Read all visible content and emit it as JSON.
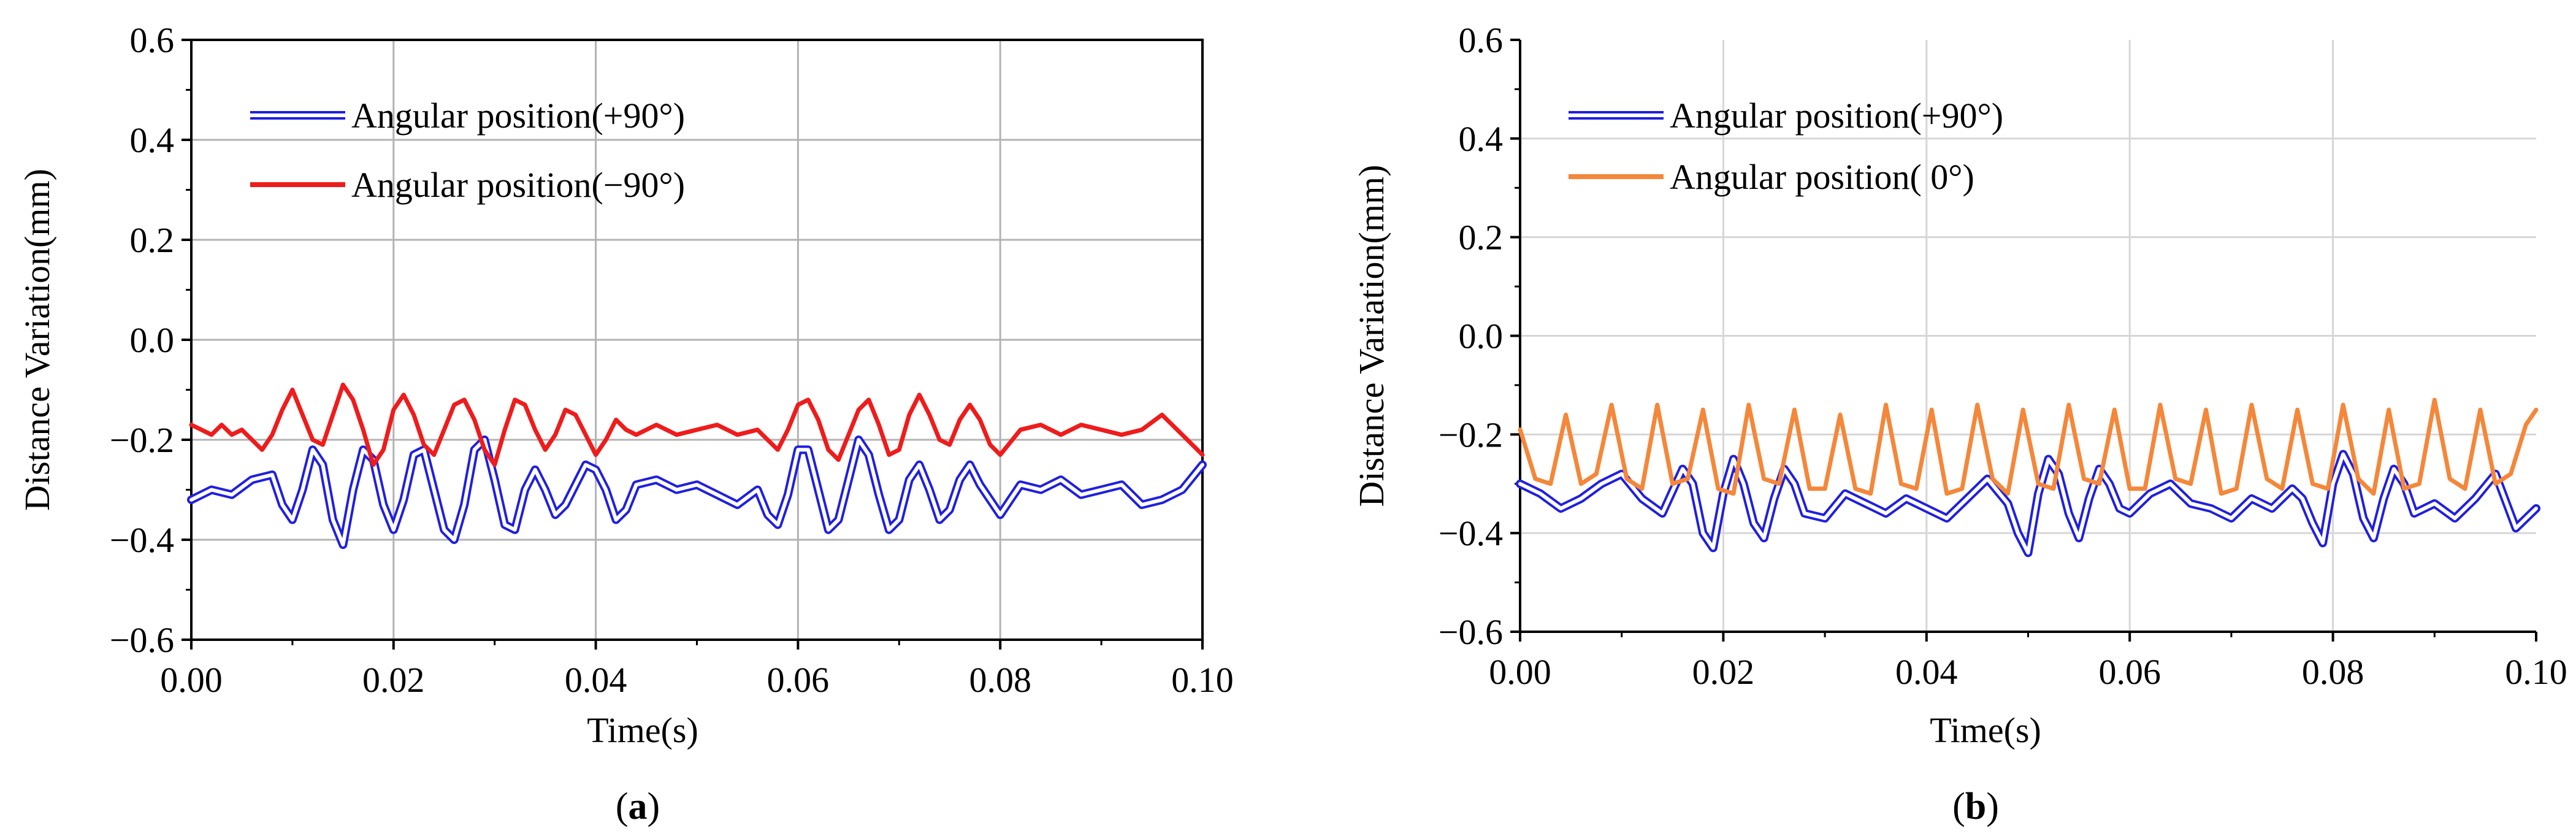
{
  "chart_data": [
    {
      "type": "line",
      "panel_label": "a",
      "xlabel": "Time(s)",
      "ylabel": "Distance Variation(mm)",
      "xlim": [
        0.0,
        0.1
      ],
      "ylim": [
        -0.6,
        0.6
      ],
      "xticks": [
        "0.00",
        "0.02",
        "0.04",
        "0.06",
        "0.08",
        "0.10"
      ],
      "yticks": [
        "0.6",
        "0.4",
        "0.2",
        "0.0",
        "-0.2",
        "-0.4",
        "-0.6"
      ],
      "grid": true,
      "legend_position": "top-left",
      "series": [
        {
          "name": "Angular position(+90°)",
          "color": "#1f1fe0",
          "style": "double-line",
          "x": [
            0.0,
            0.002,
            0.004,
            0.006,
            0.008,
            0.009,
            0.01,
            0.011,
            0.012,
            0.013,
            0.014,
            0.015,
            0.016,
            0.017,
            0.018,
            0.019,
            0.02,
            0.021,
            0.022,
            0.023,
            0.024,
            0.025,
            0.026,
            0.027,
            0.028,
            0.029,
            0.03,
            0.031,
            0.032,
            0.033,
            0.034,
            0.035,
            0.036,
            0.037,
            0.038,
            0.039,
            0.04,
            0.041,
            0.042,
            0.043,
            0.044,
            0.046,
            0.048,
            0.05,
            0.052,
            0.054,
            0.056,
            0.057,
            0.058,
            0.059,
            0.06,
            0.061,
            0.062,
            0.063,
            0.064,
            0.065,
            0.066,
            0.067,
            0.068,
            0.069,
            0.07,
            0.071,
            0.072,
            0.073,
            0.074,
            0.075,
            0.076,
            0.077,
            0.078,
            0.08,
            0.082,
            0.084,
            0.086,
            0.088,
            0.09,
            0.092,
            0.094,
            0.096,
            0.098,
            0.1
          ],
          "values": [
            -0.32,
            -0.3,
            -0.31,
            -0.28,
            -0.27,
            -0.33,
            -0.36,
            -0.3,
            -0.22,
            -0.25,
            -0.36,
            -0.41,
            -0.3,
            -0.22,
            -0.24,
            -0.33,
            -0.38,
            -0.32,
            -0.23,
            -0.22,
            -0.3,
            -0.38,
            -0.4,
            -0.33,
            -0.22,
            -0.2,
            -0.28,
            -0.37,
            -0.38,
            -0.3,
            -0.26,
            -0.3,
            -0.35,
            -0.33,
            -0.29,
            -0.25,
            -0.26,
            -0.3,
            -0.36,
            -0.34,
            -0.29,
            -0.28,
            -0.3,
            -0.29,
            -0.31,
            -0.33,
            -0.3,
            -0.35,
            -0.37,
            -0.31,
            -0.22,
            -0.22,
            -0.3,
            -0.38,
            -0.36,
            -0.28,
            -0.2,
            -0.23,
            -0.31,
            -0.38,
            -0.36,
            -0.28,
            -0.25,
            -0.3,
            -0.36,
            -0.34,
            -0.28,
            -0.25,
            -0.29,
            -0.35,
            -0.29,
            -0.3,
            -0.28,
            -0.31,
            -0.3,
            -0.29,
            -0.33,
            -0.32,
            -0.3,
            -0.25
          ]
        },
        {
          "name": "Angular position(−90°)",
          "color": "#ee1c1c",
          "style": "solid",
          "x": [
            0.0,
            0.001,
            0.002,
            0.003,
            0.004,
            0.005,
            0.006,
            0.007,
            0.008,
            0.009,
            0.01,
            0.011,
            0.012,
            0.013,
            0.014,
            0.015,
            0.016,
            0.017,
            0.018,
            0.019,
            0.02,
            0.021,
            0.022,
            0.023,
            0.024,
            0.025,
            0.026,
            0.027,
            0.028,
            0.029,
            0.03,
            0.031,
            0.032,
            0.033,
            0.034,
            0.035,
            0.036,
            0.037,
            0.038,
            0.039,
            0.04,
            0.041,
            0.042,
            0.043,
            0.044,
            0.046,
            0.048,
            0.05,
            0.052,
            0.054,
            0.056,
            0.057,
            0.058,
            0.059,
            0.06,
            0.061,
            0.062,
            0.063,
            0.064,
            0.065,
            0.066,
            0.067,
            0.068,
            0.069,
            0.07,
            0.071,
            0.072,
            0.073,
            0.074,
            0.075,
            0.076,
            0.077,
            0.078,
            0.079,
            0.08,
            0.082,
            0.084,
            0.086,
            0.088,
            0.09,
            0.092,
            0.094,
            0.096,
            0.098,
            0.1
          ],
          "values": [
            -0.17,
            -0.18,
            -0.19,
            -0.17,
            -0.19,
            -0.18,
            -0.2,
            -0.22,
            -0.19,
            -0.14,
            -0.1,
            -0.15,
            -0.2,
            -0.21,
            -0.15,
            -0.09,
            -0.12,
            -0.18,
            -0.25,
            -0.22,
            -0.14,
            -0.11,
            -0.15,
            -0.21,
            -0.23,
            -0.18,
            -0.13,
            -0.12,
            -0.16,
            -0.22,
            -0.25,
            -0.18,
            -0.12,
            -0.13,
            -0.18,
            -0.22,
            -0.19,
            -0.14,
            -0.15,
            -0.19,
            -0.23,
            -0.2,
            -0.16,
            -0.18,
            -0.19,
            -0.17,
            -0.19,
            -0.18,
            -0.17,
            -0.19,
            -0.18,
            -0.2,
            -0.22,
            -0.18,
            -0.13,
            -0.12,
            -0.16,
            -0.22,
            -0.24,
            -0.19,
            -0.14,
            -0.12,
            -0.17,
            -0.23,
            -0.22,
            -0.15,
            -0.11,
            -0.15,
            -0.2,
            -0.21,
            -0.16,
            -0.13,
            -0.16,
            -0.21,
            -0.23,
            -0.18,
            -0.17,
            -0.19,
            -0.17,
            -0.18,
            -0.19,
            -0.18,
            -0.15,
            -0.19,
            -0.23
          ]
        }
      ]
    },
    {
      "type": "line",
      "panel_label": "b",
      "xlabel": "Time(s)",
      "ylabel": "Distance Variation(mm)",
      "xlim": [
        0.0,
        0.1
      ],
      "ylim": [
        -0.6,
        0.6
      ],
      "xticks": [
        "0.00",
        "0.02",
        "0.04",
        "0.06",
        "0.08",
        "0.10"
      ],
      "yticks": [
        "0.6",
        "0.4",
        "0.2",
        "0.0",
        "-0.2",
        "-0.4",
        "-0.6"
      ],
      "grid": true,
      "legend_position": "top-left",
      "series": [
        {
          "name": "Angular position(+90°)",
          "color": "#1f1fe0",
          "style": "double-line",
          "x": [
            0.0,
            0.002,
            0.004,
            0.006,
            0.008,
            0.01,
            0.012,
            0.014,
            0.016,
            0.017,
            0.018,
            0.019,
            0.02,
            0.021,
            0.022,
            0.023,
            0.024,
            0.025,
            0.026,
            0.027,
            0.028,
            0.03,
            0.032,
            0.034,
            0.036,
            0.038,
            0.04,
            0.042,
            0.044,
            0.046,
            0.048,
            0.049,
            0.05,
            0.051,
            0.052,
            0.053,
            0.054,
            0.055,
            0.056,
            0.057,
            0.058,
            0.059,
            0.06,
            0.062,
            0.064,
            0.066,
            0.068,
            0.07,
            0.072,
            0.074,
            0.076,
            0.077,
            0.078,
            0.079,
            0.08,
            0.081,
            0.082,
            0.083,
            0.084,
            0.085,
            0.086,
            0.087,
            0.088,
            0.09,
            0.092,
            0.094,
            0.096,
            0.098,
            0.1
          ],
          "values": [
            -0.3,
            -0.32,
            -0.35,
            -0.33,
            -0.3,
            -0.28,
            -0.33,
            -0.36,
            -0.27,
            -0.3,
            -0.4,
            -0.43,
            -0.32,
            -0.25,
            -0.3,
            -0.38,
            -0.41,
            -0.33,
            -0.27,
            -0.3,
            -0.36,
            -0.37,
            -0.32,
            -0.34,
            -0.36,
            -0.33,
            -0.35,
            -0.37,
            -0.33,
            -0.29,
            -0.34,
            -0.4,
            -0.44,
            -0.32,
            -0.25,
            -0.28,
            -0.36,
            -0.41,
            -0.33,
            -0.27,
            -0.3,
            -0.35,
            -0.36,
            -0.32,
            -0.3,
            -0.34,
            -0.35,
            -0.37,
            -0.33,
            -0.35,
            -0.31,
            -0.33,
            -0.38,
            -0.42,
            -0.3,
            -0.24,
            -0.28,
            -0.37,
            -0.41,
            -0.33,
            -0.27,
            -0.3,
            -0.36,
            -0.34,
            -0.37,
            -0.33,
            -0.28,
            -0.39,
            -0.35
          ]
        },
        {
          "name": "Angular position( 0°)",
          "color": "#f4873a",
          "style": "solid",
          "x": [
            0.0,
            0.0015,
            0.003,
            0.0045,
            0.006,
            0.0075,
            0.009,
            0.0105,
            0.012,
            0.0135,
            0.015,
            0.0165,
            0.018,
            0.0195,
            0.021,
            0.0225,
            0.024,
            0.0255,
            0.027,
            0.0285,
            0.03,
            0.0315,
            0.033,
            0.0345,
            0.036,
            0.0375,
            0.039,
            0.0405,
            0.042,
            0.0435,
            0.045,
            0.0465,
            0.048,
            0.0495,
            0.051,
            0.0525,
            0.054,
            0.0555,
            0.057,
            0.0585,
            0.06,
            0.0615,
            0.063,
            0.0645,
            0.066,
            0.0675,
            0.069,
            0.0705,
            0.072,
            0.0735,
            0.075,
            0.0765,
            0.078,
            0.0795,
            0.081,
            0.0825,
            0.084,
            0.0855,
            0.087,
            0.0885,
            0.09,
            0.0915,
            0.093,
            0.0945,
            0.096,
            0.0975,
            0.099,
            0.1
          ],
          "values": [
            -0.19,
            -0.29,
            -0.3,
            -0.16,
            -0.3,
            -0.28,
            -0.14,
            -0.29,
            -0.31,
            -0.14,
            -0.3,
            -0.29,
            -0.15,
            -0.31,
            -0.32,
            -0.14,
            -0.29,
            -0.3,
            -0.15,
            -0.31,
            -0.31,
            -0.16,
            -0.31,
            -0.32,
            -0.14,
            -0.3,
            -0.31,
            -0.15,
            -0.32,
            -0.31,
            -0.14,
            -0.29,
            -0.32,
            -0.15,
            -0.3,
            -0.31,
            -0.14,
            -0.29,
            -0.3,
            -0.15,
            -0.31,
            -0.31,
            -0.14,
            -0.29,
            -0.3,
            -0.15,
            -0.32,
            -0.31,
            -0.14,
            -0.29,
            -0.31,
            -0.15,
            -0.3,
            -0.31,
            -0.14,
            -0.29,
            -0.32,
            -0.15,
            -0.31,
            -0.3,
            -0.13,
            -0.29,
            -0.31,
            -0.15,
            -0.3,
            -0.28,
            -0.18,
            -0.15
          ]
        }
      ]
    }
  ]
}
